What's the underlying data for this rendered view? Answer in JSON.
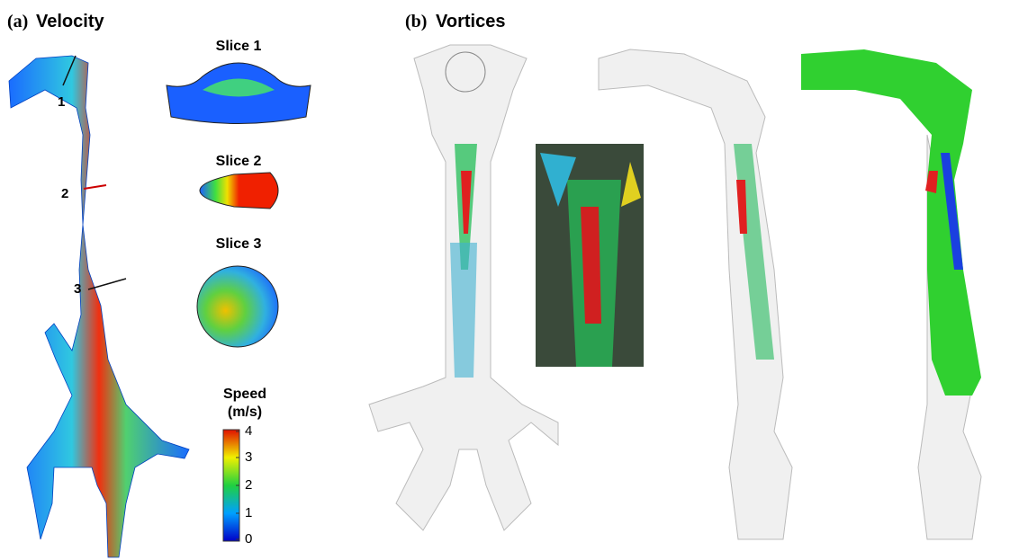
{
  "panel_a": {
    "letter": "(a)",
    "title": "Velocity",
    "markers": [
      "1",
      "2",
      "3"
    ],
    "slices": [
      "Slice 1",
      "Slice 2",
      "Slice 3"
    ],
    "colorbar": {
      "title": [
        "Speed",
        "(m/s)"
      ],
      "lim": [
        0,
        4
      ],
      "ticks": [
        0,
        1,
        2,
        3,
        4
      ]
    }
  },
  "panel_b": {
    "letter": "(b)",
    "title": "Vortices"
  }
}
